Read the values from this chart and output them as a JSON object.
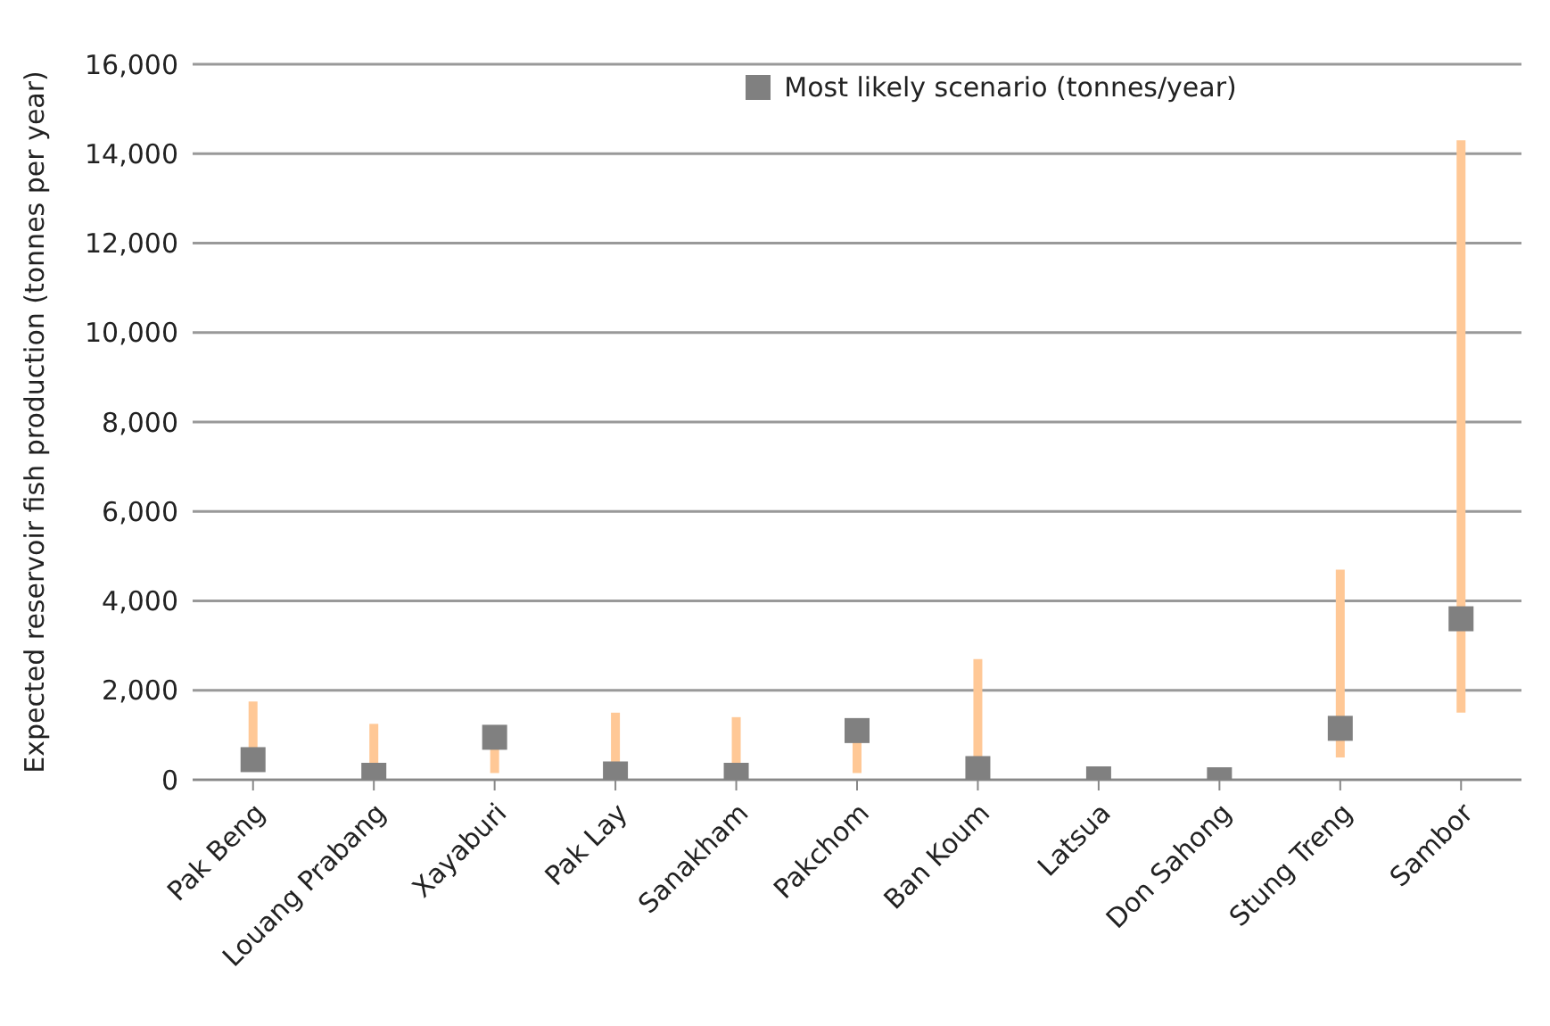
{
  "chart_data": {
    "type": "scatter",
    "ylabel": "Expected reservoir fish production (tonnes per year)",
    "categories": [
      "Pak Beng",
      "Louang Prabang",
      "Xayaburi",
      "Pak Lay",
      "Sanakham",
      "Pakchom",
      "Ban Koum",
      "Latsua",
      "Don Sahong",
      "Stung Treng",
      "Sambor"
    ],
    "series": [
      {
        "name": "Most likely scenario (tonnes/year)",
        "color": "#808080",
        "values": [
          450,
          100,
          950,
          130,
          100,
          1100,
          250,
          20,
          0,
          1150,
          3600
        ],
        "errors": [
          [
            250,
            1750
          ],
          [
            0,
            1250
          ],
          [
            150,
            1000
          ],
          [
            0,
            1500
          ],
          [
            0,
            1400
          ],
          [
            150,
            1100
          ],
          [
            0,
            2700
          ],
          null,
          null,
          [
            500,
            4700
          ],
          [
            1500,
            14300
          ]
        ]
      }
    ],
    "ylim": [
      0,
      16000
    ],
    "yticks": [
      0,
      {
        "value": 2000,
        "label": "2,000"
      },
      {
        "value": 4000,
        "label": "4,000"
      },
      {
        "value": 6000,
        "label": "6,000"
      },
      {
        "value": 8000,
        "label": "8,000"
      },
      {
        "value": 10000,
        "label": "10,000"
      },
      {
        "value": 12000,
        "label": "12,000"
      },
      {
        "value": 14000,
        "label": "14,000"
      },
      {
        "value": 16000,
        "label": "16,000"
      }
    ],
    "grid": "y",
    "legend": "top",
    "marker": "square"
  }
}
